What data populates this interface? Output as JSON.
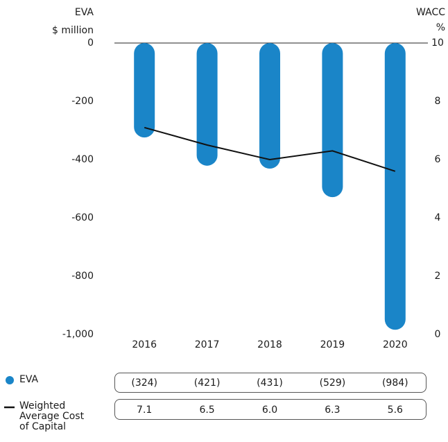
{
  "chart_data": {
    "type": "bar",
    "y_label": "EVA",
    "y_unit": "$ million",
    "y2_label": "WACC",
    "y2_unit": "%",
    "categories": [
      "2016",
      "2017",
      "2018",
      "2019",
      "2020"
    ],
    "series": [
      {
        "name": "EVA",
        "type": "bar",
        "color": "#1a85c8",
        "values": [
          -324,
          -421,
          -431,
          -529,
          -984
        ],
        "value_labels": [
          "(324)",
          "(421)",
          "(431)",
          "(529)",
          "(984)"
        ]
      },
      {
        "name": "Weighted Average Cost of Capital",
        "type": "line",
        "axis": "y2",
        "color": "#111111",
        "values": [
          7.1,
          6.5,
          6.0,
          6.3,
          5.6
        ],
        "value_labels": [
          "7.1",
          "6.5",
          "6.0",
          "6.3",
          "5.6"
        ]
      }
    ],
    "ylim": [
      -1000,
      0
    ],
    "yticks": [
      0,
      -200,
      -400,
      -600,
      -800,
      {
        "value": -1000,
        "label": "-1,000"
      }
    ],
    "y2lim": [
      0,
      10
    ],
    "y2ticks": [
      0,
      2,
      4,
      6,
      8,
      10
    ]
  }
}
